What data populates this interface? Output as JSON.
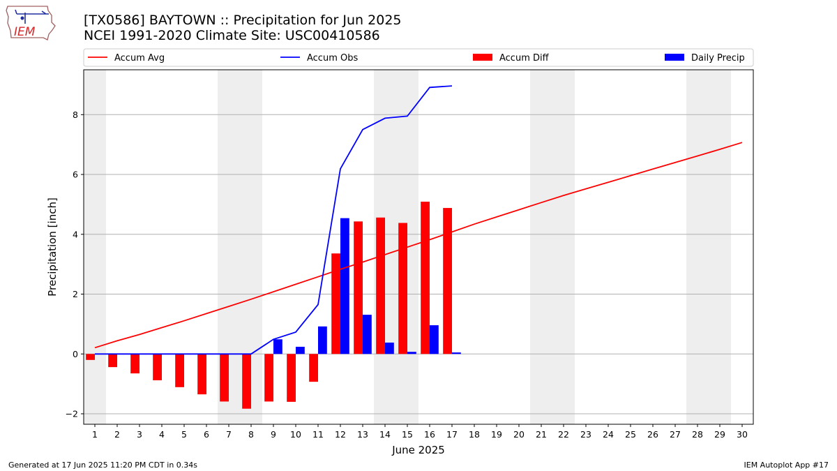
{
  "title": "[TX0586] BAYTOWN :: Precipitation for Jun 2025",
  "subtitle": "NCEI 1991-2020 Climate Site: USC00410586",
  "logo_text": "IEM",
  "footer_left": "Generated at 17 Jun 2025 11:20 PM CDT in 0.34s",
  "footer_right": "IEM Autoplot App #17",
  "colors": {
    "accum_avg": "#ff0000",
    "accum_obs": "#0000ff",
    "accum_diff": "#ff0000",
    "daily_precip": "#0000ff",
    "weekend_band": "#eeeeee",
    "grid": "#b0b0b0"
  },
  "chart_data": {
    "type": "bar",
    "xlabel": "June 2025",
    "ylabel": "Precipitation [inch]",
    "xlim": [
      0.5,
      30.5
    ],
    "ylim": [
      -2.35,
      9.5
    ],
    "yticks": [
      -2,
      0,
      2,
      4,
      6,
      8
    ],
    "xticks": [
      1,
      2,
      3,
      4,
      5,
      6,
      7,
      8,
      9,
      10,
      11,
      12,
      13,
      14,
      15,
      16,
      17,
      18,
      19,
      20,
      21,
      22,
      23,
      24,
      25,
      26,
      27,
      28,
      29,
      30
    ],
    "grid": "y",
    "legend_placement": "top, above plot",
    "weekend_bands": [
      [
        0.5,
        1.5
      ],
      [
        6.5,
        8.5
      ],
      [
        13.5,
        15.5
      ],
      [
        20.5,
        22.5
      ],
      [
        27.5,
        29.5
      ]
    ],
    "series": [
      {
        "name": "Accum Avg",
        "kind": "line",
        "x": [
          1,
          2,
          3,
          4,
          5,
          6,
          7,
          8,
          9,
          10,
          11,
          12,
          13,
          14,
          15,
          16,
          17,
          18,
          19,
          20,
          21,
          22,
          23,
          24,
          25,
          26,
          27,
          28,
          29,
          30
        ],
        "values": [
          0.21,
          0.44,
          0.65,
          0.88,
          1.11,
          1.35,
          1.59,
          1.83,
          2.08,
          2.33,
          2.58,
          2.83,
          3.07,
          3.32,
          3.57,
          3.82,
          4.08,
          4.34,
          4.58,
          4.82,
          5.06,
          5.3,
          5.52,
          5.74,
          5.96,
          6.18,
          6.4,
          6.62,
          6.84,
          7.07
        ]
      },
      {
        "name": "Accum Obs",
        "kind": "line",
        "x": [
          1,
          2,
          3,
          4,
          5,
          6,
          7,
          8,
          9,
          10,
          11,
          12,
          13,
          14,
          15,
          16,
          17
        ],
        "values": [
          0,
          0,
          0,
          0,
          0,
          0,
          0,
          0,
          0.49,
          0.73,
          1.65,
          6.19,
          7.5,
          7.88,
          7.95,
          8.91,
          8.96
        ]
      },
      {
        "name": "Accum Diff",
        "kind": "bar",
        "x": [
          1,
          2,
          3,
          4,
          5,
          6,
          7,
          8,
          9,
          10,
          11,
          12,
          13,
          14,
          15,
          16,
          17
        ],
        "values": [
          -0.2,
          -0.44,
          -0.65,
          -0.88,
          -1.11,
          -1.35,
          -1.59,
          -1.83,
          -1.59,
          -1.6,
          -0.93,
          3.36,
          4.43,
          4.56,
          4.38,
          5.09,
          4.88
        ]
      },
      {
        "name": "Daily Precip",
        "kind": "bar",
        "x": [
          1,
          2,
          3,
          4,
          5,
          6,
          7,
          8,
          9,
          10,
          11,
          12,
          13,
          14,
          15,
          16,
          17
        ],
        "values": [
          0,
          0,
          0,
          0,
          0,
          0,
          0,
          0,
          0.49,
          0.24,
          0.92,
          4.54,
          1.31,
          0.38,
          0.07,
          0.96,
          0.05
        ]
      }
    ]
  }
}
